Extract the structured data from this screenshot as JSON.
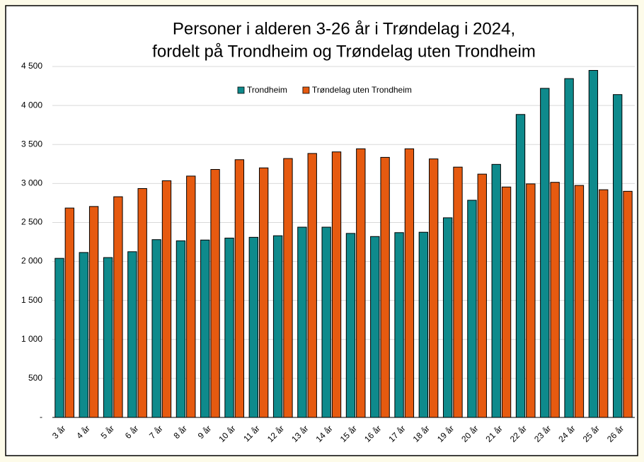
{
  "chart_data": {
    "type": "bar",
    "title": [
      "Personer i alderen 3-26 år i Trøndelag i 2024,",
      "fordelt på Trondheim og Trøndelag uten Trondheim"
    ],
    "categories": [
      "3 år",
      "4 år",
      "5 år",
      "6 år",
      "7 år",
      "8 år",
      "9 år",
      "10 år",
      "11 år",
      "12 år",
      "13 år",
      "14 år",
      "15 år",
      "16 år",
      "17 år",
      "18 år",
      "19 år",
      "20 år",
      "21 år",
      "22 år",
      "23 år",
      "24 år",
      "25 år",
      "26 år"
    ],
    "series": [
      {
        "name": "Trondheim",
        "color": "#0e8a8c",
        "values": [
          2040,
          2115,
          2050,
          2125,
          2280,
          2265,
          2275,
          2300,
          2310,
          2330,
          2440,
          2440,
          2360,
          2320,
          2370,
          2375,
          2560,
          2785,
          3245,
          3885,
          4220,
          4345,
          4450,
          4140
        ]
      },
      {
        "name": "Trøndelag uten Trondheim",
        "color": "#e65a10",
        "values": [
          2685,
          2705,
          2830,
          2935,
          3035,
          3095,
          3180,
          3305,
          3200,
          3320,
          3385,
          3405,
          3445,
          3335,
          3445,
          3315,
          3210,
          3120,
          2955,
          2995,
          3015,
          2975,
          2920,
          2900
        ]
      }
    ],
    "ylim": [
      0,
      4500
    ],
    "yticks": [
      {
        "value": 0,
        "label": "-"
      },
      500,
      {
        "value": 1000,
        "label": "1 000"
      },
      {
        "value": 1500,
        "label": "1 500"
      },
      {
        "value": 2000,
        "label": "2 000"
      },
      {
        "value": 2500,
        "label": "2 500"
      },
      {
        "value": 3000,
        "label": "3 000"
      },
      {
        "value": 3500,
        "label": "3 500"
      },
      {
        "value": 4000,
        "label": "4 000"
      },
      {
        "value": 4500,
        "label": "4 500"
      }
    ],
    "grid": true,
    "legend": "top"
  }
}
